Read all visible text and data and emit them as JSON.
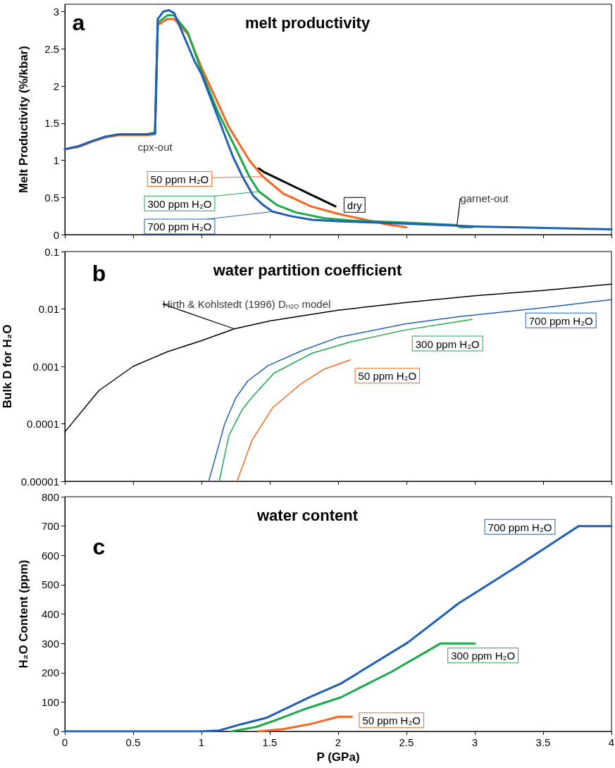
{
  "chart_data": [
    {
      "type": "line",
      "title": "melt productivity",
      "ylabel": "Melt Productivity (%/kbar)",
      "xlim": [
        0,
        4
      ],
      "xticks": [
        0,
        0.5,
        1,
        1.5,
        2,
        2.5,
        3,
        3.5,
        4
      ],
      "ylim": [
        0,
        3.1
      ],
      "yticks": [
        0,
        0.5,
        1,
        1.5,
        2,
        2.5,
        3
      ],
      "tick_labels": "y",
      "annotations": [
        "a",
        {
          "text": "cpx-out",
          "x": 0.66,
          "y": 1.37
        },
        {
          "text": "garnet-out",
          "x": 2.87,
          "y": 0.13
        }
      ],
      "series": [
        {
          "name": "dry",
          "color": "#000000",
          "x": [
            1.42,
            1.46,
            1.64,
            1.8,
            1.98
          ],
          "values": [
            0.89,
            0.84,
            0.68,
            0.54,
            0.38
          ]
        },
        {
          "name": "50 ppm H₂O",
          "color": "#f26522",
          "x": [
            0,
            0.1,
            0.2,
            0.3,
            0.4,
            0.5,
            0.6,
            0.66,
            0.68,
            0.75,
            0.8,
            0.9,
            1.0,
            1.2,
            1.35,
            1.45,
            1.6,
            1.8,
            2.0,
            2.2,
            2.35,
            2.5
          ],
          "values": [
            1.15,
            1.18,
            1.25,
            1.31,
            1.34,
            1.34,
            1.34,
            1.35,
            2.82,
            2.9,
            2.9,
            2.7,
            2.25,
            1.45,
            1.0,
            0.78,
            0.55,
            0.38,
            0.28,
            0.2,
            0.14,
            0.1
          ]
        },
        {
          "name": "300 ppm H₂O",
          "color": "#1aaa4a",
          "x": [
            0.6,
            0.66,
            0.68,
            0.75,
            0.8,
            0.9,
            1.0,
            1.12,
            1.28,
            1.35,
            1.42,
            1.55,
            1.69,
            1.9,
            2.1,
            2.5,
            2.85,
            2.9,
            2.98
          ],
          "values": [
            1.35,
            1.36,
            2.85,
            2.95,
            2.95,
            2.72,
            2.2,
            1.65,
            1.05,
            0.78,
            0.58,
            0.4,
            0.3,
            0.22,
            0.19,
            0.16,
            0.13,
            0.1,
            0.1
          ]
        },
        {
          "name": "700 ppm H₂O",
          "color": "#1f5fb4",
          "x": [
            0,
            0.1,
            0.2,
            0.3,
            0.4,
            0.5,
            0.6,
            0.66,
            0.68,
            0.72,
            0.76,
            0.8,
            0.86,
            0.95,
            1.0,
            1.12,
            1.23,
            1.3,
            1.38,
            1.45,
            1.52,
            1.65,
            1.81,
            2.0,
            2.3,
            2.6,
            2.87,
            3.0,
            3.5,
            4.0
          ],
          "values": [
            1.15,
            1.19,
            1.26,
            1.32,
            1.35,
            1.35,
            1.35,
            1.37,
            2.9,
            3.0,
            3.02,
            2.98,
            2.72,
            2.33,
            2.16,
            1.58,
            1.05,
            0.78,
            0.52,
            0.4,
            0.31,
            0.25,
            0.2,
            0.18,
            0.16,
            0.14,
            0.12,
            0.11,
            0.09,
            0.07
          ]
        }
      ]
    },
    {
      "type": "line",
      "title": "water partition coefficient",
      "ylabel": "Bulk D for H₂O",
      "log": "y",
      "xlim": [
        0,
        4
      ],
      "xticks": [
        0,
        0.5,
        1,
        1.5,
        2,
        2.5,
        3,
        3.5,
        4
      ],
      "ylim": [
        1e-05,
        0.1
      ],
      "yticks": [
        {
          "value": 1e-05,
          "label": "0.00001"
        },
        {
          "value": 0.0001,
          "label": "0.0001"
        },
        {
          "value": 0.001,
          "label": "0.001"
        },
        {
          "value": 0.01,
          "label": "0.01"
        },
        {
          "value": 0.1,
          "label": "0.1"
        }
      ],
      "tick_labels": "y",
      "annotations": [
        "b",
        {
          "text": "Hirth & Kohlstedt (1996) D$_{H2O}$ model",
          "x": 1.24,
          "y": 0.0045
        }
      ],
      "series": [
        {
          "color": "#000000",
          "x": [
            0,
            0.25,
            0.5,
            0.75,
            1.0,
            1.24,
            1.5,
            2.0,
            2.5,
            3.0,
            3.5,
            4.0
          ],
          "values": [
            7.2e-05,
            0.00038,
            0.001,
            0.0018,
            0.0028,
            0.0045,
            0.0062,
            0.0095,
            0.013,
            0.017,
            0.021,
            0.027
          ]
        },
        {
          "name": "50 ppm H₂O",
          "color": "#f26522",
          "x": [
            1.26,
            1.37,
            1.52,
            1.72,
            1.9,
            2.09
          ],
          "values": [
            1e-05,
            5.2e-05,
            0.00019,
            0.00048,
            0.0009,
            0.0013
          ]
        },
        {
          "name": "300 ppm H₂O",
          "color": "#1aaa4a",
          "x": [
            1.13,
            1.2,
            1.3,
            1.37,
            1.53,
            1.81,
            2.1,
            2.49,
            2.98
          ],
          "values": [
            1e-05,
            6.2e-05,
            0.00018,
            0.00029,
            0.00076,
            0.0017,
            0.0027,
            0.0043,
            0.0066
          ]
        },
        {
          "name": "700 ppm H₂O",
          "color": "#1f5fb4",
          "x": [
            1.053,
            1.1,
            1.17,
            1.25,
            1.34,
            1.49,
            1.74,
            2.0,
            2.49,
            2.89,
            3.5,
            4.0
          ],
          "values": [
            1e-05,
            2.5e-05,
            0.0001,
            0.00028,
            0.00056,
            0.00104,
            0.0019,
            0.0032,
            0.0055,
            0.0074,
            0.0105,
            0.0145
          ]
        }
      ]
    },
    {
      "type": "line",
      "title": "water content",
      "xlabel": "P (GPa)",
      "ylabel": "H₂O Content (ppm)",
      "xlim": [
        0,
        4
      ],
      "xticks": [
        0,
        0.5,
        1,
        1.5,
        2,
        2.5,
        3,
        3.5,
        4
      ],
      "ylim": [
        0,
        800
      ],
      "yticks": [
        0,
        100,
        200,
        300,
        400,
        500,
        600,
        700,
        800
      ],
      "annotations": [
        "c"
      ],
      "series": [
        {
          "name": "50 ppm H₂O",
          "color": "#f26522",
          "x": [
            1.42,
            1.6,
            1.8,
            2.0,
            2.1
          ],
          "values": [
            0,
            8,
            25,
            50,
            50
          ]
        },
        {
          "name": "300 ppm H₂O",
          "color": "#1aaa4a",
          "x": [
            1.22,
            1.4,
            1.53,
            1.75,
            2.02,
            2.39,
            2.75,
            3.0
          ],
          "values": [
            0,
            15,
            36,
            75,
            116,
            203,
            300,
            300
          ]
        },
        {
          "name": "700 ppm H₂O",
          "color": "#1f5fb4",
          "x": [
            0,
            1.0,
            1.13,
            1.28,
            1.48,
            1.79,
            2.02,
            2.51,
            2.88,
            3.3,
            3.76,
            4.0
          ],
          "values": [
            0,
            0,
            3,
            23,
            47,
            116,
            163,
            303,
            436,
            560,
            700,
            700
          ]
        }
      ]
    }
  ]
}
